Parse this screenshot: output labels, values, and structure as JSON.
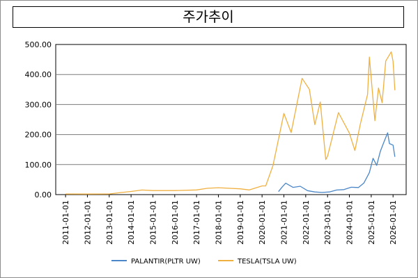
{
  "chart_data": {
    "type": "line",
    "title": "주가추이",
    "xlabel": "",
    "ylabel": "",
    "ylim": [
      0,
      500
    ],
    "yticks": [
      "0.00",
      "100.00",
      "200.00",
      "300.00",
      "400.00",
      "500.00"
    ],
    "xticks": [
      "2011-01-01",
      "2012-01-01",
      "2013-01-01",
      "2014-01-01",
      "2015-01-01",
      "2016-01-01",
      "2017-01-01",
      "2018-01-01",
      "2019-01-01",
      "2020-01-01",
      "2021-01-01",
      "2022-01-01",
      "2023-01-01",
      "2024-01-01",
      "2025-01-01",
      "2026-01-01"
    ],
    "grid": "horizontal",
    "legend_position": "bottom",
    "series": [
      {
        "name": "PALANTIR(PLTR UW)",
        "color": "#4a86c8",
        "x": [
          "2020-10",
          "2020-12",
          "2021-02",
          "2021-06",
          "2021-10",
          "2022-02",
          "2022-06",
          "2022-10",
          "2023-02",
          "2023-06",
          "2023-10",
          "2024-02",
          "2024-06",
          "2024-09",
          "2024-12",
          "2025-02",
          "2025-04",
          "2025-06",
          "2025-08",
          "2025-10",
          "2025-11",
          "2026-01",
          "2026-02"
        ],
        "y": [
          10,
          25,
          38,
          24,
          28,
          13,
          9,
          7,
          9,
          15,
          17,
          24,
          24,
          38,
          75,
          118,
          100,
          140,
          180,
          200,
          175,
          160,
          130
        ]
      },
      {
        "name": "TESLA(TSLA UW)",
        "color": "#f0b040",
        "x": [
          "2011-01",
          "2012-01",
          "2013-01",
          "2013-07",
          "2014-01",
          "2014-07",
          "2015-01",
          "2016-01",
          "2017-01",
          "2017-07",
          "2018-01",
          "2019-01",
          "2019-06",
          "2020-01",
          "2020-03",
          "2020-07",
          "2020-09",
          "2021-01",
          "2021-05",
          "2021-11",
          "2022-03",
          "2022-06",
          "2022-09",
          "2022-12",
          "2023-01",
          "2023-07",
          "2024-01",
          "2024-04",
          "2024-07",
          "2024-11",
          "2024-12",
          "2025-03",
          "2025-05",
          "2025-07",
          "2025-09",
          "2025-12",
          "2026-01",
          "2026-02"
        ],
        "y": [
          2,
          2,
          2,
          7,
          10,
          16,
          13,
          14,
          15,
          22,
          22,
          20,
          15,
          30,
          28,
          100,
          150,
          280,
          200,
          400,
          340,
          240,
          300,
          120,
          125,
          280,
          200,
          150,
          230,
          340,
          450,
          250,
          350,
          310,
          440,
          480,
          440,
          350
        ]
      }
    ]
  }
}
